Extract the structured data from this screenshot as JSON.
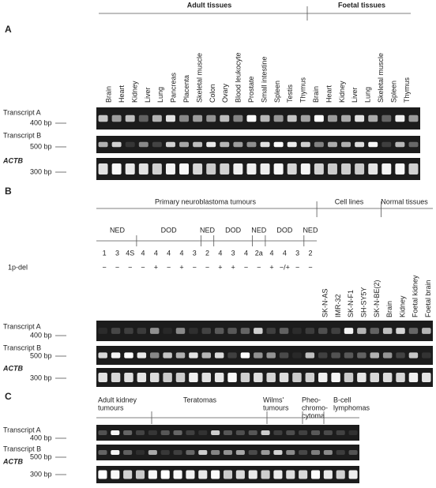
{
  "panel_a": {
    "label": "A",
    "groups": [
      "Adult tissues",
      "Foetal tissues"
    ],
    "lanes": [
      "Brain",
      "Heart",
      "Kidney",
      "Liver",
      "Lung",
      "Pancreas",
      "Placenta",
      "Skeletal muscle",
      "Colon",
      "Ovary",
      "Blood leukocyte",
      "Prostate",
      "Small intestine",
      "Spleen",
      "Testis",
      "Thymus",
      "Brain",
      "Heart",
      "Kidney",
      "Liver",
      "Lung",
      "Skeletal muscle",
      "Spleen",
      "Thymus"
    ],
    "rows": [
      {
        "name": "Transcript A",
        "size": "400 bp"
      },
      {
        "name": "Transcript B",
        "size": "500 bp"
      },
      {
        "name": "ACTB",
        "size": "300 bp"
      }
    ]
  },
  "panel_b": {
    "label": "B",
    "groups": [
      "Primary neuroblastoma tumours",
      "Cell lines",
      "Normal tissues"
    ],
    "outcomes": [
      "NED",
      "DOD",
      "NED",
      "DOD",
      "NED",
      "DOD",
      "NED"
    ],
    "stages": [
      "1",
      "3",
      "4S",
      "4",
      "4",
      "4",
      "4",
      "3",
      "2",
      "4",
      "3",
      "4",
      "2a",
      "4",
      "4",
      "3",
      "2"
    ],
    "deletion_label": "1p-del",
    "deletion": [
      "−",
      "−",
      "−",
      "−",
      "+",
      "−",
      "+",
      "−",
      "−",
      "+",
      "+",
      "−",
      "−",
      "+",
      "−/+",
      "−",
      "−"
    ],
    "lanes": [
      "SK-N-AS",
      "IMR-32",
      "SK-N-F1",
      "SH-SY5Y",
      "SK-N-BE(2)",
      "Brain",
      "Kidney",
      "Foetal kidney",
      "Foetal brain"
    ],
    "rows": [
      {
        "name": "Transcript A",
        "size": "400 bp"
      },
      {
        "name": "Transcript B",
        "size": "500 bp"
      },
      {
        "name": "ACTB",
        "size": "300 bp"
      }
    ]
  },
  "panel_c": {
    "label": "C",
    "groups": [
      [
        "Adult kidney",
        "tumours"
      ],
      [
        "Teratomas"
      ],
      [
        "Wilms'",
        "tumours"
      ],
      [
        "Pheo-",
        "chromo-",
        "cytoma"
      ],
      [
        "B-cell",
        "lymphomas"
      ]
    ],
    "rows": [
      {
        "name": "Transcript A",
        "size": "400 bp"
      },
      {
        "name": "Transcript B",
        "size": "500 bp"
      },
      {
        "name": "ACTB",
        "size": "300 bp"
      }
    ]
  }
}
